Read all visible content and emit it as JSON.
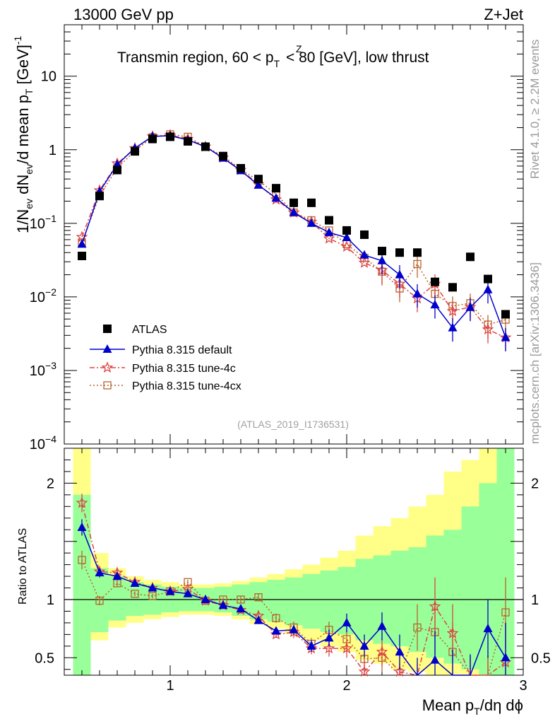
{
  "chart_data": {
    "type": "scatter",
    "energy_label": "13000 GeV pp",
    "process_label": "Z+Jet",
    "title_lead": "Transmin region, 60 < p",
    "title_sup": "Z",
    "title_sub": "T",
    "title_tail": " < 80 [GeV], low thrust",
    "ylabel": "1/N_ev dN_ev/d mean p_T [GeV]^-1",
    "ylabel_text": "1/N",
    "ylabel_text_sub": "ev",
    "ylabel_text_mid": " dN",
    "ylabel_text_sub2": "ev",
    "ylabel_text_mid2": "/d mean p",
    "ylabel_text_sub3": "T",
    "ylabel_text_tail": " [GeV]",
    "ylabel_text_sup": "-1",
    "xlabel_lead": "Mean p",
    "xlabel_sub": "T",
    "xlabel_tail": "/dη dϕ",
    "ratio_ylabel": "Ratio to ATLAS",
    "watermark": "(ATLAS_2019_I1736531)",
    "side_label_top": "Rivet 4.1.0, ≥ 2.2M events",
    "side_label_bottom": "mcplots.cern.ch [arXiv:1306.3436]",
    "xlim": [
      0.4,
      3.0
    ],
    "ylim": [
      0.0001,
      50
    ],
    "ratio_ylim": [
      0.35,
      2.3
    ],
    "x_ticks": [
      {
        "value": 1,
        "label": "1"
      },
      {
        "value": 2,
        "label": "2"
      },
      {
        "value": 3,
        "label": "3"
      }
    ],
    "y_ticks": [
      {
        "value": 10,
        "base": "10",
        "exp": ""
      },
      {
        "value": 1,
        "base": "1",
        "exp": ""
      },
      {
        "value": 0.1,
        "base": "10",
        "exp": "−1"
      },
      {
        "value": 0.01,
        "base": "10",
        "exp": "−2"
      },
      {
        "value": 0.001,
        "base": "10",
        "exp": "−3"
      },
      {
        "value": 0.0001,
        "base": "10",
        "exp": "−4"
      }
    ],
    "ratio_ticks": [
      {
        "value": 2,
        "label": "2"
      },
      {
        "value": 1,
        "label": "1"
      },
      {
        "value": 0.5,
        "label": "0.5"
      }
    ],
    "bin_edges": [
      0.45,
      0.55,
      0.65,
      0.75,
      0.85,
      0.95,
      1.05,
      1.15,
      1.25,
      1.35,
      1.45,
      1.55,
      1.65,
      1.75,
      1.85,
      1.95,
      2.05,
      2.15,
      2.25,
      2.35,
      2.45,
      2.55,
      2.65,
      2.75,
      2.85,
      2.95
    ],
    "x": [
      0.5,
      0.6,
      0.7,
      0.8,
      0.9,
      1.0,
      1.1,
      1.2,
      1.3,
      1.4,
      1.5,
      1.6,
      1.7,
      1.8,
      1.9,
      2.0,
      2.1,
      2.2,
      2.3,
      2.4,
      2.5,
      2.6,
      2.7,
      2.8,
      2.9
    ],
    "series": [
      {
        "name": "ATLAS",
        "color": "#000000",
        "marker": "square-filled",
        "values": [
          0.036,
          0.235,
          0.53,
          0.95,
          1.4,
          1.5,
          1.3,
          1.1,
          0.82,
          0.56,
          0.4,
          0.3,
          0.19,
          0.19,
          0.11,
          0.08,
          0.07,
          0.042,
          0.04,
          0.04,
          0.016,
          0.0135,
          0.035,
          0.0175,
          0.0058
        ]
      },
      {
        "name": "Pythia 8.315 default",
        "color": "#0000cc",
        "marker": "triangle-filled",
        "dash": "",
        "values": [
          0.052,
          0.27,
          0.63,
          1.05,
          1.52,
          1.55,
          1.36,
          1.1,
          0.77,
          0.52,
          0.33,
          0.22,
          0.14,
          0.1,
          0.075,
          0.064,
          0.037,
          0.031,
          0.02,
          0.011,
          0.0078,
          0.0038,
          0.0072,
          0.0125,
          0.0028
        ],
        "ratio": [
          1.62,
          1.23,
          1.2,
          1.14,
          1.1,
          1.07,
          1.05,
          1.0,
          0.95,
          0.92,
          0.82,
          0.73,
          0.74,
          0.6,
          0.67,
          0.8,
          0.6,
          0.77,
          0.55,
          0.3,
          0.48,
          0.27,
          0.23,
          0.75,
          0.5
        ],
        "ratio_err": [
          0.07,
          0.04,
          0.03,
          0.02,
          0.02,
          0.02,
          0.02,
          0.02,
          0.02,
          0.03,
          0.03,
          0.03,
          0.04,
          0.05,
          0.07,
          0.08,
          0.1,
          0.12,
          0.15,
          0.2,
          0.25,
          0.3,
          0.3,
          0.25,
          0.3
        ]
      },
      {
        "name": "Pythia 8.315 tune-4c",
        "color": "#dd4444",
        "marker": "star-open",
        "dash": "7,3,2,3",
        "values": [
          0.065,
          0.28,
          0.65,
          1.05,
          1.52,
          1.58,
          1.4,
          1.1,
          0.78,
          0.53,
          0.34,
          0.21,
          0.14,
          0.105,
          0.062,
          0.048,
          0.029,
          0.023,
          0.015,
          0.0095,
          0.015,
          0.0064,
          0.0073,
          0.0036,
          0.0028
        ],
        "ratio": [
          1.83,
          1.24,
          1.23,
          1.15,
          1.1,
          1.07,
          1.09,
          0.99,
          0.95,
          0.91,
          0.86,
          0.7,
          0.72,
          0.58,
          0.58,
          0.58,
          0.38,
          0.55,
          0.38,
          0.25,
          0.94,
          0.71,
          0.21,
          0.21,
          0.46
        ],
        "ratio_err": [
          0.08,
          0.04,
          0.03,
          0.02,
          0.02,
          0.02,
          0.02,
          0.02,
          0.02,
          0.03,
          0.03,
          0.03,
          0.05,
          0.05,
          0.07,
          0.08,
          0.1,
          0.12,
          0.15,
          0.2,
          0.25,
          0.25,
          0.3,
          0.3,
          0.35
        ]
      },
      {
        "name": "Pythia 8.315 tune-4cx",
        "color": "#b8642e",
        "marker": "square-open",
        "dash": "2,3",
        "values": [
          0.055,
          0.24,
          0.56,
          0.97,
          1.48,
          1.62,
          1.5,
          1.1,
          0.82,
          0.54,
          0.38,
          0.25,
          0.14,
          0.11,
          0.08,
          0.052,
          0.034,
          0.022,
          0.013,
          0.028,
          0.011,
          0.0075,
          0.0082,
          0.0042,
          0.0049
        ],
        "ratio": [
          1.34,
          0.99,
          1.14,
          1.05,
          1.03,
          1.07,
          1.15,
          0.99,
          1.0,
          1.0,
          1.02,
          0.84,
          0.76,
          0.62,
          0.74,
          0.66,
          0.49,
          0.5,
          0.3,
          0.76,
          0.72,
          0.55,
          0.22,
          0.22,
          0.89
        ],
        "ratio_err": [
          0.08,
          0.04,
          0.03,
          0.02,
          0.02,
          0.02,
          0.02,
          0.02,
          0.02,
          0.03,
          0.03,
          0.04,
          0.05,
          0.05,
          0.07,
          0.08,
          0.1,
          0.12,
          0.15,
          0.2,
          0.25,
          0.25,
          0.3,
          0.3,
          0.3
        ]
      }
    ],
    "ratio_bands": {
      "green_lo": [
        0.35,
        0.72,
        0.82,
        0.86,
        0.87,
        0.89,
        0.9,
        0.9,
        0.89,
        0.86,
        0.83,
        0.81,
        0.78,
        0.75,
        0.72,
        0.7,
        0.65,
        0.62,
        0.6,
        0.55,
        0.5,
        0.45,
        0.4,
        0.35,
        0.35
      ],
      "green_hi": [
        1.9,
        1.27,
        1.2,
        1.15,
        1.13,
        1.11,
        1.1,
        1.1,
        1.11,
        1.13,
        1.15,
        1.17,
        1.19,
        1.22,
        1.25,
        1.28,
        1.35,
        1.38,
        1.42,
        1.45,
        1.55,
        1.6,
        1.8,
        2.0,
        2.3
      ],
      "yellow_lo": [
        0.35,
        0.65,
        0.76,
        0.8,
        0.83,
        0.85,
        0.87,
        0.87,
        0.86,
        0.83,
        0.79,
        0.75,
        0.7,
        0.65,
        0.6,
        0.55,
        0.48,
        0.45,
        0.4,
        0.38,
        0.35,
        0.35,
        0.35,
        0.35,
        0.35
      ],
      "yellow_hi": [
        2.3,
        1.4,
        1.27,
        1.2,
        1.17,
        1.15,
        1.13,
        1.13,
        1.14,
        1.16,
        1.19,
        1.22,
        1.26,
        1.3,
        1.36,
        1.42,
        1.55,
        1.63,
        1.7,
        1.8,
        1.9,
        2.1,
        2.2,
        2.3,
        2.3
      ]
    },
    "legend_position": "lower-left"
  }
}
